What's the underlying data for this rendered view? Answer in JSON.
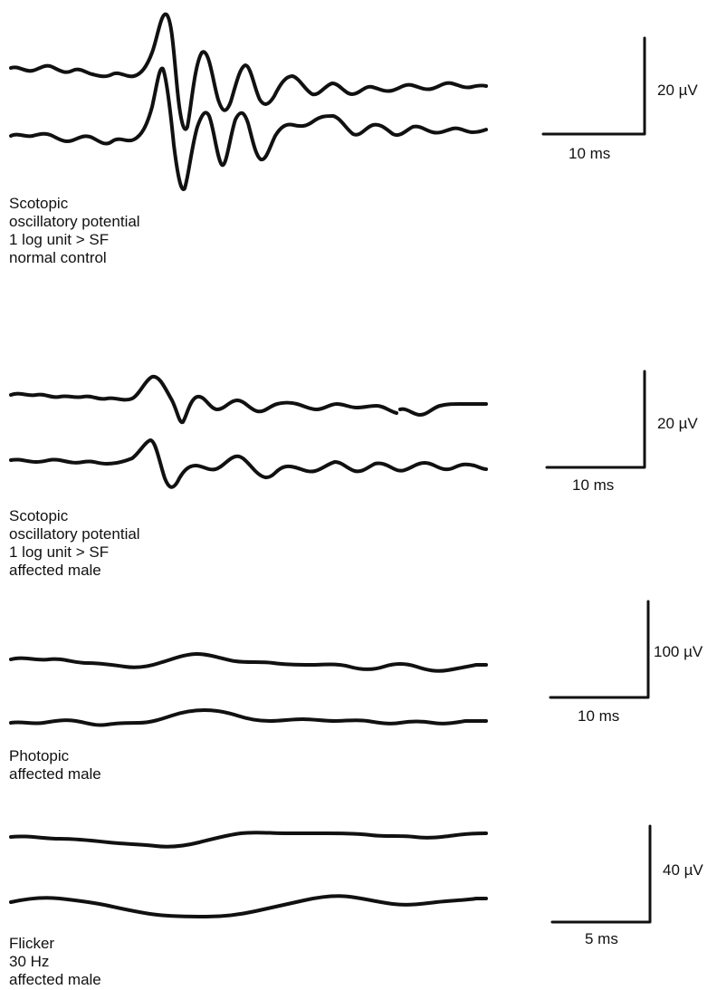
{
  "panels": [
    {
      "id": "scotopic-normal",
      "caption": [
        "Scotopic",
        "oscillatory potential",
        "1 log unit > SF",
        "normal control"
      ],
      "scale_amplitude": "20 µV",
      "scale_time": "10 ms"
    },
    {
      "id": "scotopic-affected",
      "caption": [
        "Scotopic",
        "oscillatory potential",
        "1 log unit > SF",
        "affected male"
      ],
      "scale_amplitude": "20 µV",
      "scale_time": "10 ms"
    },
    {
      "id": "photopic-affected",
      "caption": [
        "Photopic",
        "affected male"
      ],
      "scale_amplitude": "100 µV",
      "scale_time": "10 ms"
    },
    {
      "id": "flicker-affected",
      "caption": [
        "Flicker",
        "30 Hz",
        "affected male"
      ],
      "scale_amplitude": "40 µV",
      "scale_time": "5 ms"
    }
  ],
  "colors": {
    "trace": "#111111",
    "background": "#ffffff"
  }
}
